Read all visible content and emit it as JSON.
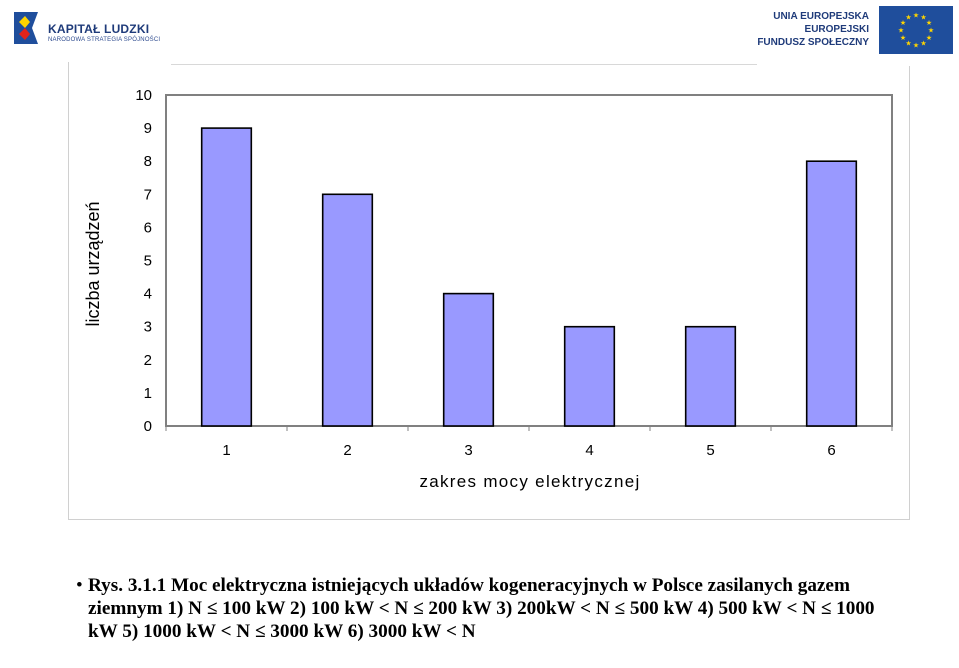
{
  "header": {
    "left_logo": {
      "title": "KAPITAŁ LUDZKI",
      "subtitle": "NARODOWA STRATEGIA SPÓJNOŚCI",
      "icon": "kapital-ludzki-logo"
    },
    "right_logo": {
      "lines": [
        "UNIA EUROPEJSKA",
        "EUROPEJSKI",
        "FUNDUSZ SPOŁECZNY"
      ],
      "icon": "eu-flag",
      "flag_color": "#1f4e9c",
      "star_color": "#ffd500"
    }
  },
  "chart_data": {
    "type": "bar",
    "categories": [
      "1",
      "2",
      "3",
      "4",
      "5",
      "6"
    ],
    "values": [
      9,
      7,
      4,
      3,
      3,
      8
    ],
    "title": "",
    "xlabel": "zakres mocy elektrycznej",
    "ylabel": "liczba urządzeń",
    "ylim": [
      0,
      10
    ],
    "yticks": [
      "0",
      "1",
      "2",
      "3",
      "4",
      "5",
      "6",
      "7",
      "8",
      "9",
      "10"
    ],
    "grid": false,
    "legend": "none",
    "bar_color": "#9999ff",
    "plot_background": "#ffffff",
    "plot_border_color": "#808080"
  },
  "caption": {
    "bullet": "•",
    "text": "Rys. 3.1.1 Moc elektryczna istniejących układów kogeneracyjnych w Polsce zasilanych gazem ziemnym 1) N ≤ 100 kW    2) 100 kW < N ≤ 200 kW    3) 200kW < N ≤ 500 kW    4) 500 kW < N ≤ 1000 kW    5) 1000 kW < N ≤ 3000 kW    6) 3000 kW < N"
  }
}
